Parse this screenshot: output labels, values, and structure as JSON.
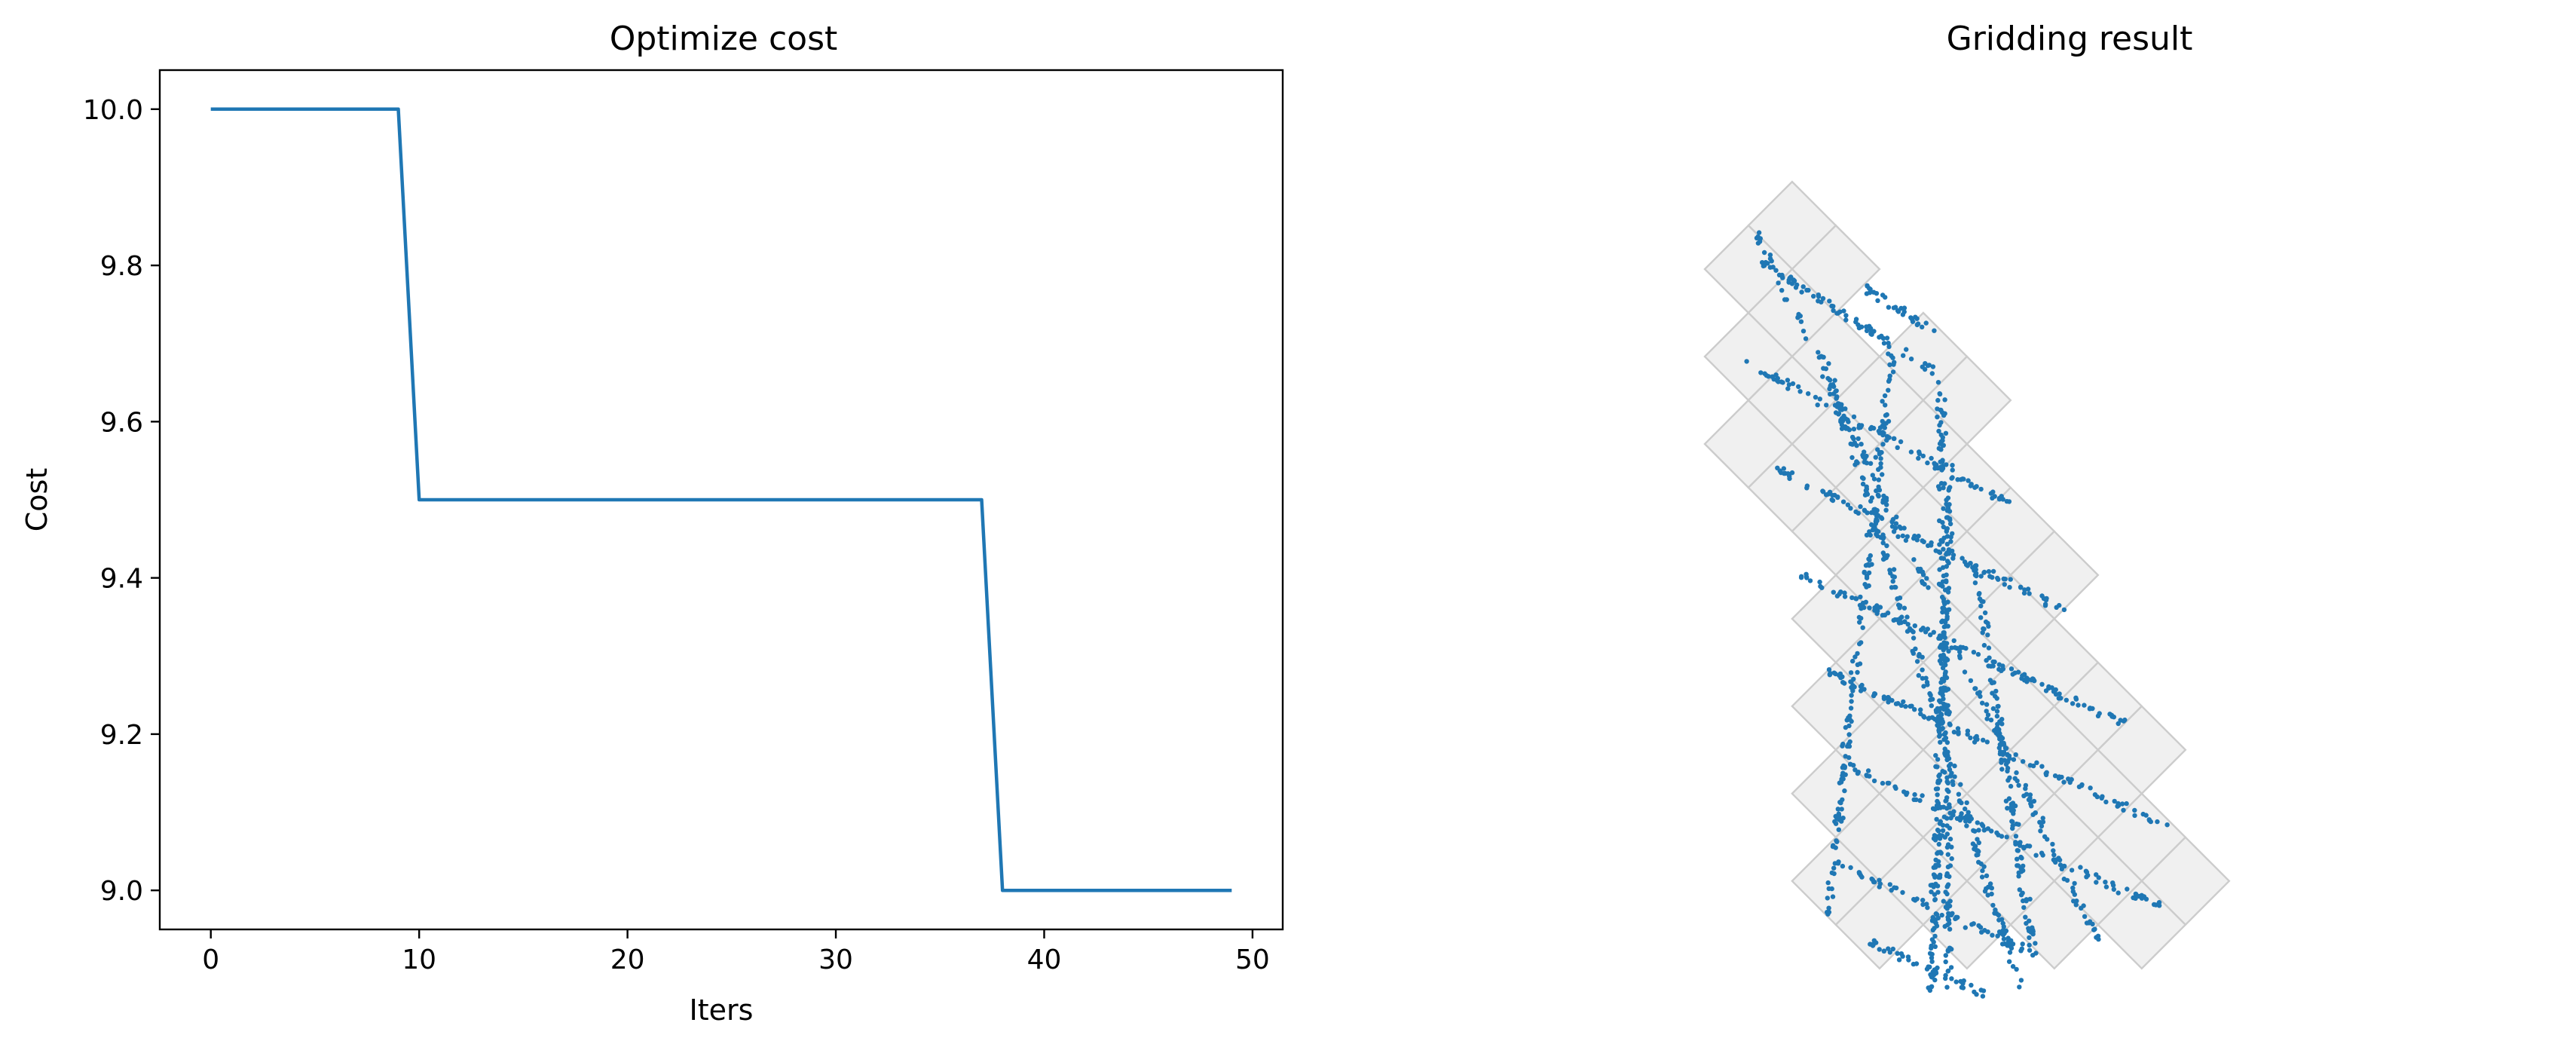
{
  "chart_data": [
    {
      "type": "line",
      "title": "Optimize cost",
      "xlabel": "Iters",
      "ylabel": "Cost",
      "xlim": [
        -2.45,
        51.45
      ],
      "ylim": [
        8.95,
        10.05
      ],
      "xticks": [
        0,
        10,
        20,
        30,
        40,
        50
      ],
      "xtick_labels": [
        "0",
        "10",
        "20",
        "30",
        "40",
        "50"
      ],
      "yticks": [
        9.0,
        9.2,
        9.4,
        9.6,
        9.8,
        10.0
      ],
      "ytick_labels": [
        "9.0",
        "9.2",
        "9.4",
        "9.6",
        "9.8",
        "10.0"
      ],
      "grid": false,
      "series": [
        {
          "color": "#1f77b4",
          "x": [
            0,
            1,
            2,
            3,
            4,
            5,
            6,
            7,
            8,
            9,
            10,
            11,
            12,
            13,
            14,
            15,
            16,
            17,
            18,
            19,
            20,
            21,
            22,
            23,
            24,
            25,
            26,
            27,
            28,
            29,
            30,
            31,
            32,
            33,
            34,
            35,
            36,
            37,
            38,
            39,
            40,
            41,
            42,
            43,
            44,
            45,
            46,
            47,
            48,
            49
          ],
          "y": [
            10.0,
            10.0,
            10.0,
            10.0,
            10.0,
            10.0,
            10.0,
            10.0,
            10.0,
            10.0,
            9.5,
            9.5,
            9.5,
            9.5,
            9.5,
            9.5,
            9.5,
            9.5,
            9.5,
            9.5,
            9.5,
            9.5,
            9.5,
            9.5,
            9.5,
            9.5,
            9.5,
            9.5,
            9.5,
            9.5,
            9.5,
            9.5,
            9.5,
            9.5,
            9.5,
            9.5,
            9.5,
            9.5,
            9.0,
            9.0,
            9.0,
            9.0,
            9.0,
            9.0,
            9.0,
            9.0,
            9.0,
            9.0,
            9.0,
            9.0
          ]
        }
      ]
    },
    {
      "type": "scatter",
      "title": "Gridding result",
      "axes_visible": false,
      "grid_cells": {
        "fill": "#f0f0f0",
        "edge": "#cccccc",
        "rotation_deg": 45,
        "cells": [
          [
            0,
            3
          ],
          [
            1,
            3
          ],
          [
            0,
            2
          ],
          [
            1,
            2
          ],
          [
            2,
            2
          ],
          [
            3,
            2
          ],
          [
            1,
            1
          ],
          [
            2,
            1
          ],
          [
            3,
            1
          ],
          [
            4,
            1
          ],
          [
            5,
            1
          ],
          [
            6,
            1
          ],
          [
            2,
            0
          ],
          [
            3,
            0
          ],
          [
            4,
            0
          ],
          [
            5,
            0
          ],
          [
            6,
            0
          ],
          [
            7,
            0
          ],
          [
            8,
            0
          ],
          [
            9,
            0
          ],
          [
            10,
            0
          ],
          [
            11,
            0
          ],
          [
            12,
            0
          ],
          [
            5,
            -1
          ],
          [
            6,
            -1
          ],
          [
            7,
            -1
          ],
          [
            8,
            -1
          ],
          [
            9,
            -1
          ],
          [
            10,
            -1
          ],
          [
            11,
            -1
          ],
          [
            12,
            -1
          ],
          [
            6,
            -2
          ],
          [
            7,
            -2
          ],
          [
            8,
            -2
          ],
          [
            9,
            -2
          ],
          [
            10,
            -2
          ],
          [
            11,
            -2
          ],
          [
            7,
            -3
          ],
          [
            8,
            -3
          ],
          [
            9,
            -3
          ],
          [
            10,
            -3
          ],
          [
            8,
            -4
          ],
          [
            9,
            -4
          ],
          [
            2,
            1
          ],
          [
            3,
            3
          ],
          [
            4,
            2
          ],
          [
            4,
            3
          ],
          [
            5,
            2
          ],
          [
            6,
            2
          ],
          [
            7,
            2
          ],
          [
            7,
            1
          ],
          [
            8,
            1
          ],
          [
            9,
            1
          ],
          [
            10,
            1
          ]
        ]
      },
      "point_color": "#1f77b4",
      "point_clusters": [
        {
          "from": [
            0.2,
            3.0
          ],
          "to": [
            12.2,
            -1.2
          ],
          "n": 170
        },
        {
          "from": [
            2.3,
            2.4
          ],
          "to": [
            11.8,
            -2.6
          ],
          "n": 210
        },
        {
          "from": [
            3.1,
            3.2
          ],
          "to": [
            8.8,
            -4.0
          ],
          "n": 160
        },
        {
          "from": [
            4.0,
            3.4
          ],
          "to": [
            11.0,
            -3.4
          ],
          "n": 170
        },
        {
          "from": [
            5.0,
            2.6
          ],
          "to": [
            10.9,
            -3.7
          ],
          "n": 190
        },
        {
          "from": [
            6.5,
            1.7
          ],
          "to": [
            11.5,
            -2.0
          ],
          "n": 130
        },
        {
          "from": [
            0.5,
            2.7
          ],
          "to": [
            4.0,
            3.5
          ],
          "n": 70
        },
        {
          "from": [
            1.5,
            1.4
          ],
          "to": [
            6.2,
            2.8
          ],
          "n": 80
        },
        {
          "from": [
            3.0,
            0.5
          ],
          "to": [
            8.0,
            2.2
          ],
          "n": 100
        },
        {
          "from": [
            4.6,
            -0.4
          ],
          "to": [
            10.0,
            1.6
          ],
          "n": 110
        },
        {
          "from": [
            6.0,
            -1.2
          ],
          "to": [
            11.6,
            0.9
          ],
          "n": 110
        },
        {
          "from": [
            7.2,
            -2.1
          ],
          "to": [
            12.5,
            -0.1
          ],
          "n": 100
        },
        {
          "from": [
            8.3,
            -3.3
          ],
          "to": [
            11.8,
            -2.0
          ],
          "n": 60
        },
        {
          "from": [
            2.0,
            3.6
          ],
          "to": [
            3.3,
            3.9
          ],
          "n": 30
        },
        {
          "from": [
            9.6,
            -3.8
          ],
          "to": [
            11.5,
            -3.1
          ],
          "n": 40
        }
      ]
    }
  ]
}
